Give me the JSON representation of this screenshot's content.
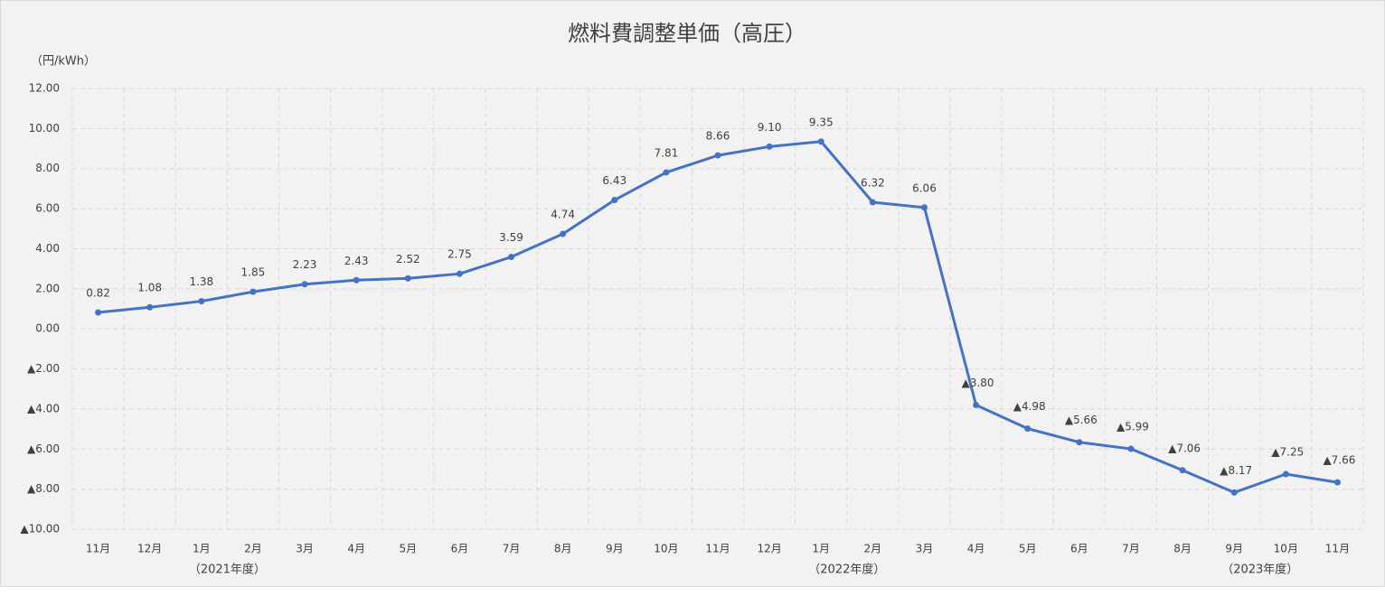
{
  "chart_data": {
    "type": "line",
    "title": "燃料費調整単価（高圧）",
    "y_axis_label": "（円/kWh）",
    "categories": [
      "11月",
      "12月",
      "1月",
      "2月",
      "3月",
      "4月",
      "5月",
      "6月",
      "7月",
      "8月",
      "9月",
      "10月",
      "11月",
      "12月",
      "1月",
      "2月",
      "3月",
      "4月",
      "5月",
      "6月",
      "7月",
      "8月",
      "9月",
      "10月",
      "11月"
    ],
    "series": [
      {
        "name": "燃料費調整単価",
        "color": "#4472c4",
        "values": [
          0.82,
          1.08,
          1.38,
          1.85,
          2.23,
          2.43,
          2.52,
          2.75,
          3.59,
          4.74,
          6.43,
          7.81,
          8.66,
          9.1,
          9.35,
          6.32,
          6.06,
          -3.8,
          -4.98,
          -5.66,
          -5.99,
          -7.06,
          -8.17,
          -7.25,
          -7.66
        ],
        "value_labels": [
          "0.82",
          "1.08",
          "1.38",
          "1.85",
          "2.23",
          "2.43",
          "2.52",
          "2.75",
          "3.59",
          "4.74",
          "6.43",
          "7.81",
          "8.66",
          "9.10",
          "9.35",
          "6.32",
          "6.06",
          "▲3.80",
          "▲4.98",
          "▲5.66",
          "▲5.99",
          "▲7.06",
          "▲8.17",
          "▲7.25",
          "▲7.66"
        ]
      }
    ],
    "fiscal_year_labels": [
      "（2021年度）",
      "（2022年度）",
      "（2023年度）"
    ],
    "ylim": [
      -10,
      12
    ],
    "yticks": [
      {
        "value": 12,
        "label": "12.00"
      },
      {
        "value": 10,
        "label": "10.00"
      },
      {
        "value": 8,
        "label": "8.00"
      },
      {
        "value": 6,
        "label": "6.00"
      },
      {
        "value": 4,
        "label": "4.00"
      },
      {
        "value": 2,
        "label": "2.00"
      },
      {
        "value": 0,
        "label": "0.00"
      },
      {
        "value": -2,
        "label": "▲2.00"
      },
      {
        "value": -4,
        "label": "▲4.00"
      },
      {
        "value": -6,
        "label": "▲6.00"
      },
      {
        "value": -8,
        "label": "▲8.00"
      },
      {
        "value": -10,
        "label": "▲10.00"
      }
    ],
    "grid": true
  }
}
